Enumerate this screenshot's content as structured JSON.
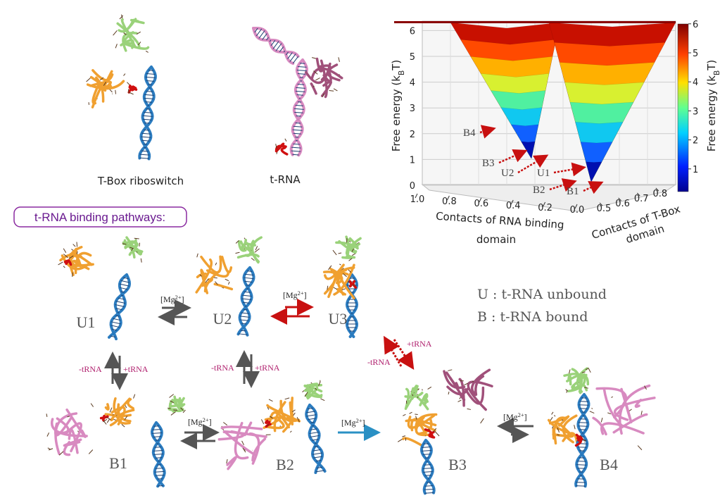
{
  "structures": {
    "tbox": "T-Box riboswitch",
    "trna": "t-RNA"
  },
  "landscape": {
    "z_axis_label": [
      "Free energy (k",
      "B",
      "T)"
    ],
    "colorbar_label": [
      "Free energy (k",
      "B",
      "T)"
    ],
    "zticks": [
      0,
      1,
      2,
      3,
      4,
      5,
      6
    ],
    "colorbar_ticks": [
      1,
      2,
      3,
      4,
      5,
      6
    ],
    "x_axis_label": [
      "Contacts of RNA binding",
      "domain"
    ],
    "xticks": [
      {
        "value": 1,
        "label": "1.0"
      },
      {
        "value": 0.8,
        "label": "0.8"
      },
      {
        "value": 0.6,
        "label": "0.6"
      },
      {
        "value": 0.4,
        "label": "0.4"
      },
      {
        "value": 0.2,
        "label": "0.2"
      },
      {
        "value": 0,
        "label": "0.0"
      }
    ],
    "y_axis_label": [
      "Contacts of T-Box",
      "domain"
    ],
    "yticks": [
      0.5,
      0.6,
      0.7,
      0.8
    ],
    "states": [
      "B4",
      "B3",
      "U2",
      "U1",
      "B2",
      "B1"
    ]
  },
  "pathways": {
    "title": "t-RNA binding pathways:",
    "states": [
      "U1",
      "U2",
      "U3",
      "B1",
      "B2",
      "B3",
      "B4"
    ],
    "transitions": [
      [
        "[Mg",
        "2+",
        "]"
      ],
      [
        "[Mg",
        "2+",
        "]"
      ],
      [
        "[Mg",
        "2+",
        "]"
      ],
      [
        "[Mg",
        "2+",
        "]"
      ],
      [
        "[Mg",
        "2+",
        "]"
      ]
    ],
    "binding": [
      [
        "-tRNA",
        "+tRNA"
      ],
      [
        "-tRNA",
        "+tRNA"
      ],
      [
        "-tRNA",
        "+tRNA"
      ]
    ],
    "legend": [
      "U : t-RNA unbound",
      "B : t-RNA bound"
    ]
  }
}
